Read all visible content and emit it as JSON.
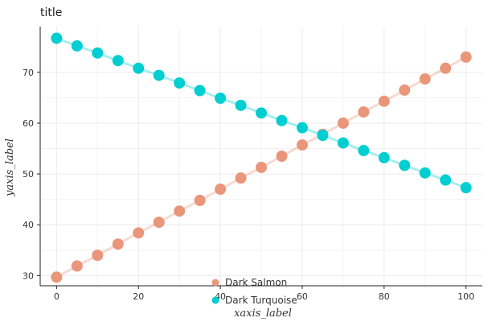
{
  "chart_data": {
    "type": "line",
    "title": "title",
    "xlabel": "xaxis_label",
    "ylabel": "yaxis_label",
    "xlim": [
      -4,
      104
    ],
    "ylim": [
      28,
      79
    ],
    "xticks": [
      0,
      20,
      40,
      60,
      80,
      100
    ],
    "yticks": [
      30,
      40,
      50,
      60,
      70
    ],
    "grid": true,
    "legend_position": "bottom-center",
    "series": [
      {
        "name": "Dark Salmon",
        "color": "#E9967A",
        "x": [
          0,
          5,
          10,
          15,
          20,
          25,
          30,
          35,
          40,
          45,
          50,
          55,
          60,
          65,
          70,
          75,
          80,
          85,
          90,
          95,
          100
        ],
        "y": [
          29.7,
          31.9,
          34.0,
          36.2,
          38.4,
          40.5,
          42.7,
          44.8,
          47.0,
          49.2,
          51.3,
          53.5,
          55.7,
          57.8,
          60.0,
          62.2,
          64.3,
          66.5,
          68.7,
          70.8,
          73.0
        ]
      },
      {
        "name": "Dark Turquoise",
        "color": "#00CED1",
        "x": [
          0,
          5,
          10,
          15,
          20,
          25,
          30,
          35,
          40,
          45,
          50,
          55,
          60,
          65,
          70,
          75,
          80,
          85,
          90,
          95,
          100
        ],
        "y": [
          76.7,
          75.2,
          73.8,
          72.3,
          70.8,
          69.4,
          67.9,
          66.4,
          64.9,
          63.5,
          62.0,
          60.5,
          59.1,
          57.6,
          56.1,
          54.6,
          53.2,
          51.7,
          50.2,
          48.8,
          47.3
        ]
      }
    ]
  }
}
